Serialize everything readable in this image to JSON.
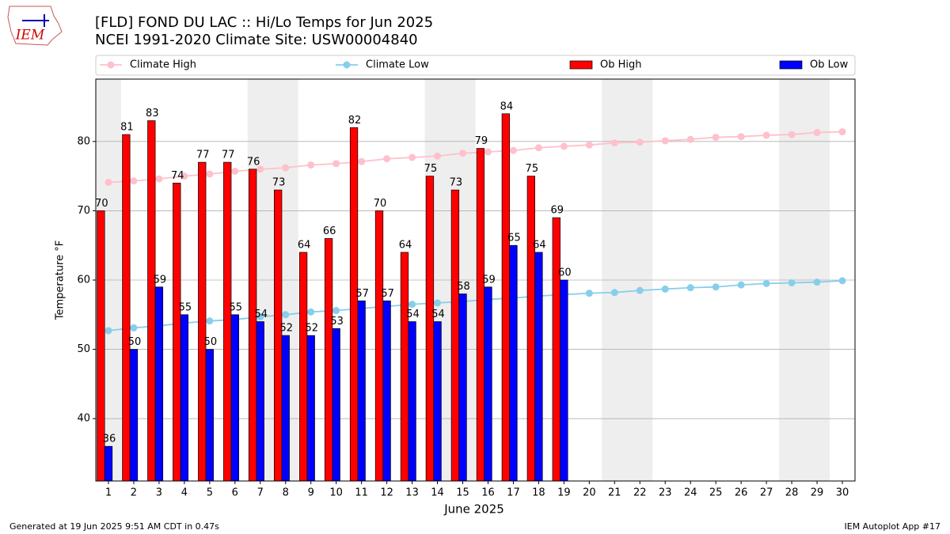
{
  "chart_data": {
    "type": "bar",
    "title": "[FLD] FOND DU LAC :: Hi/Lo Temps for Jun 2025",
    "subtitle": "NCEI 1991-2020 Climate Site: USW00004840",
    "x_label": "June 2025",
    "y_label": "Temperature °F",
    "x": [
      1,
      2,
      3,
      4,
      5,
      6,
      7,
      8,
      9,
      10,
      11,
      12,
      13,
      14,
      15,
      16,
      17,
      18,
      19,
      20,
      21,
      22,
      23,
      24,
      25,
      26,
      27,
      28,
      29,
      30
    ],
    "xlim": [
      0.5,
      30.5
    ],
    "xticks": [
      1,
      2,
      3,
      4,
      5,
      6,
      7,
      8,
      9,
      10,
      11,
      12,
      13,
      14,
      15,
      16,
      17,
      18,
      19,
      20,
      21,
      22,
      23,
      24,
      25,
      26,
      27,
      28,
      29,
      30
    ],
    "ylim": [
      31,
      89
    ],
    "yticks": [
      40,
      50,
      60,
      70,
      80
    ],
    "grid": true,
    "weekend_bands": [
      [
        0.5,
        1.5
      ],
      [
        6.5,
        8.5
      ],
      [
        13.5,
        15.5
      ],
      [
        20.5,
        22.5
      ],
      [
        27.5,
        29.5
      ]
    ],
    "legend": "top",
    "series": [
      {
        "name": "Climate High",
        "type": "line",
        "color": "#ffc0cb",
        "values": [
          74.1,
          74.3,
          74.6,
          75.0,
          75.3,
          75.7,
          76.0,
          76.2,
          76.6,
          76.8,
          77.1,
          77.5,
          77.7,
          77.9,
          78.3,
          78.5,
          78.7,
          79.1,
          79.3,
          79.5,
          79.8,
          79.9,
          80.1,
          80.3,
          80.6,
          80.7,
          80.9,
          81.0,
          81.3,
          81.4
        ]
      },
      {
        "name": "Climate Low",
        "type": "line",
        "color": "#87ceeb",
        "values": [
          52.7,
          53.1,
          53.4,
          53.8,
          54.1,
          54.3,
          54.7,
          55.0,
          55.4,
          55.6,
          55.9,
          56.2,
          56.5,
          56.7,
          56.9,
          57.2,
          57.4,
          57.7,
          57.9,
          58.1,
          58.2,
          58.5,
          58.7,
          58.9,
          59.0,
          59.3,
          59.5,
          59.6,
          59.7,
          59.9
        ]
      },
      {
        "name": "Ob High",
        "type": "bar",
        "color": "#ff0000",
        "values": [
          70,
          81,
          83,
          74,
          77,
          77,
          76,
          73,
          64,
          66,
          82,
          70,
          64,
          75,
          73,
          79,
          84,
          75,
          69,
          null,
          null,
          null,
          null,
          null,
          null,
          null,
          null,
          null,
          null,
          null
        ]
      },
      {
        "name": "Ob Low",
        "type": "bar",
        "color": "#0000ff",
        "values": [
          36,
          50,
          59,
          55,
          50,
          55,
          54,
          52,
          52,
          53,
          57,
          57,
          54,
          54,
          58,
          59,
          65,
          64,
          60,
          null,
          null,
          null,
          null,
          null,
          null,
          null,
          null,
          null,
          null,
          null
        ]
      }
    ]
  },
  "logo_text": "IEM",
  "footer_left": "Generated at 19 Jun 2025 9:51 AM CDT in 0.47s",
  "footer_right": "IEM Autoplot App #17"
}
